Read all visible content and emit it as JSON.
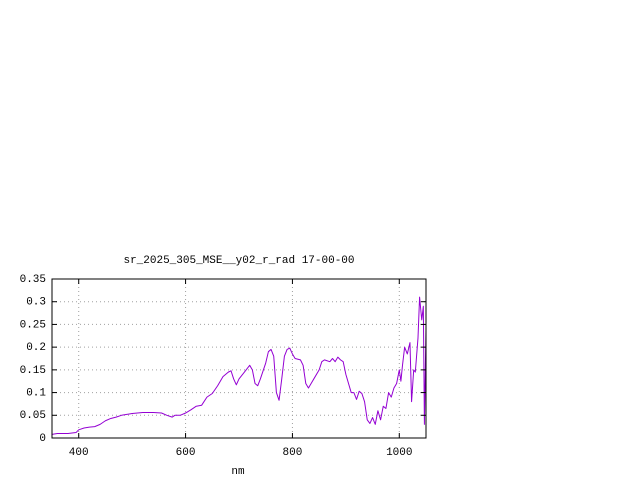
{
  "chart_data": {
    "type": "line",
    "title": "sr_2025_305_MSE__y02_r_rad 17-00-00",
    "x_label": "nm",
    "xlim": [
      350,
      1050
    ],
    "xticks": [
      400,
      600,
      800,
      1000
    ],
    "ylim": [
      0,
      0.35
    ],
    "yticks": [
      0,
      0.05,
      0.1,
      0.15,
      0.2,
      0.25,
      0.3,
      0.35
    ],
    "grid": true,
    "series": [
      {
        "color": "#9400d3",
        "x": [
          350,
          360,
          380,
          395,
          400,
          410,
          420,
          430,
          440,
          450,
          460,
          470,
          480,
          490,
          500,
          510,
          520,
          540,
          555,
          565,
          575,
          580,
          590,
          600,
          610,
          620,
          630,
          640,
          650,
          660,
          670,
          680,
          685,
          690,
          695,
          700,
          710,
          720,
          725,
          730,
          735,
          740,
          750,
          755,
          760,
          765,
          770,
          775,
          780,
          785,
          790,
          795,
          800,
          805,
          815,
          820,
          825,
          830,
          840,
          850,
          855,
          860,
          870,
          875,
          880,
          885,
          890,
          895,
          900,
          905,
          910,
          915,
          920,
          925,
          930,
          935,
          940,
          945,
          950,
          955,
          960,
          965,
          970,
          975,
          980,
          985,
          990,
          995,
          1000,
          1003,
          1006,
          1010,
          1015,
          1020,
          1023,
          1027,
          1030,
          1035,
          1038,
          1042,
          1045,
          1047,
          1050
        ],
        "values": [
          0.008,
          0.01,
          0.01,
          0.012,
          0.018,
          0.022,
          0.024,
          0.025,
          0.03,
          0.038,
          0.043,
          0.046,
          0.05,
          0.052,
          0.054,
          0.055,
          0.056,
          0.056,
          0.055,
          0.05,
          0.046,
          0.05,
          0.05,
          0.055,
          0.062,
          0.07,
          0.072,
          0.09,
          0.098,
          0.115,
          0.135,
          0.145,
          0.148,
          0.13,
          0.117,
          0.13,
          0.145,
          0.16,
          0.15,
          0.12,
          0.115,
          0.13,
          0.165,
          0.19,
          0.195,
          0.18,
          0.1,
          0.083,
          0.13,
          0.18,
          0.195,
          0.198,
          0.185,
          0.175,
          0.172,
          0.16,
          0.12,
          0.11,
          0.13,
          0.15,
          0.168,
          0.172,
          0.168,
          0.175,
          0.168,
          0.178,
          0.172,
          0.168,
          0.14,
          0.12,
          0.1,
          0.1,
          0.085,
          0.103,
          0.098,
          0.08,
          0.04,
          0.032,
          0.045,
          0.03,
          0.06,
          0.04,
          0.07,
          0.065,
          0.1,
          0.09,
          0.11,
          0.12,
          0.15,
          0.125,
          0.16,
          0.2,
          0.185,
          0.21,
          0.08,
          0.15,
          0.145,
          0.22,
          0.31,
          0.26,
          0.29,
          0.03,
          0.24
        ]
      }
    ]
  }
}
